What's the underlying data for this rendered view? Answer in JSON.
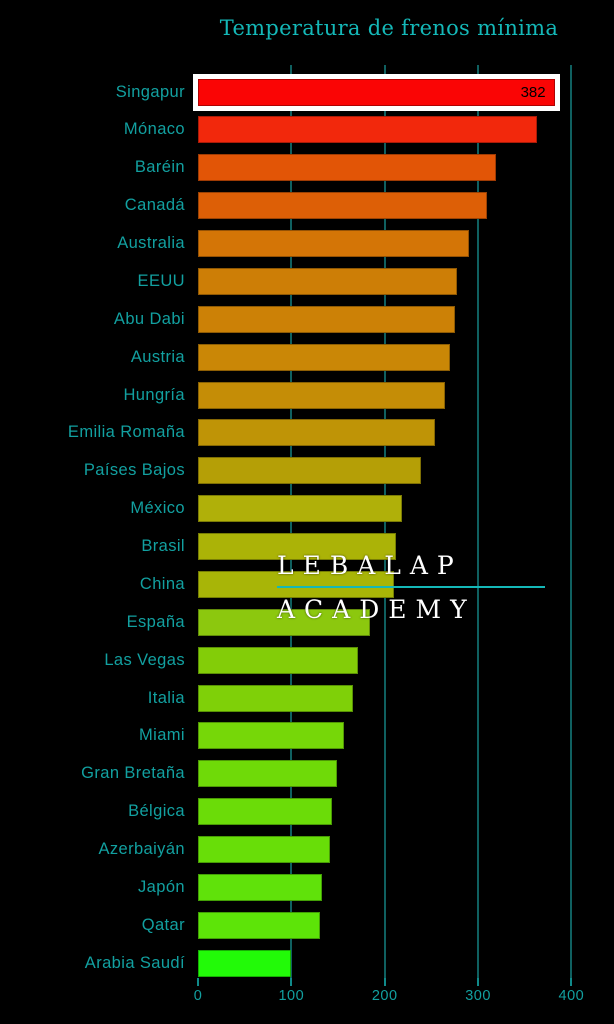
{
  "title": "Temperatura de frenos mínima",
  "watermark": {
    "line1": "LEBALAP",
    "line2": "ACADEMY"
  },
  "colors": {
    "background": "#000000",
    "title_text": "#14b8b8",
    "axis_text": "#12a0a0",
    "category_text": "#12a0a0",
    "gridline": "#0f6060",
    "highlight_border": "#ffffff",
    "value_label_text": "#000000",
    "watermark_text": "#ffffff",
    "watermark_line": "#14b8b8"
  },
  "chart_data": {
    "type": "bar",
    "orientation": "horizontal",
    "title": "Temperatura de frenos mínima",
    "categories": [
      "Singapur",
      "Mónaco",
      "Baréin",
      "Canadá",
      "Australia",
      "EEUU",
      "Abu Dabi",
      "Austria",
      "Hungría",
      "Emilia Romaña",
      "Países Bajos",
      "México",
      "Brasil",
      "China",
      "España",
      "Las Vegas",
      "Italia",
      "Miami",
      "Gran Bretaña",
      "Bélgica",
      "Azerbaiyán",
      "Japón",
      "Qatar",
      "Arabia Saudí"
    ],
    "values": [
      382,
      363,
      319,
      310,
      290,
      277,
      275,
      270,
      265,
      254,
      239,
      218,
      212,
      210,
      184,
      171,
      166,
      156,
      149,
      144,
      141,
      133,
      131,
      100
    ],
    "bar_colors": [
      "#fa0505",
      "#f2280c",
      "#e25506",
      "#dd5f06",
      "#d47506",
      "#cd7e06",
      "#cc8106",
      "#ca8706",
      "#c58d06",
      "#bf9406",
      "#b59f06",
      "#b0b009",
      "#abb307",
      "#a8b507",
      "#8cc80e",
      "#83cd08",
      "#7fd008",
      "#76d708",
      "#6fda08",
      "#6bdc08",
      "#68de08",
      "#60e20a",
      "#5de408",
      "#22fa08"
    ],
    "xlabel": "",
    "ylabel": "",
    "xlim": [
      0,
      400
    ],
    "x_ticks": [
      0,
      100,
      200,
      300,
      400
    ],
    "grid": "vertical gridlines on",
    "legend": "none",
    "highlighted_category": "Singapur",
    "value_labels": {
      "Singapur": "382"
    }
  }
}
